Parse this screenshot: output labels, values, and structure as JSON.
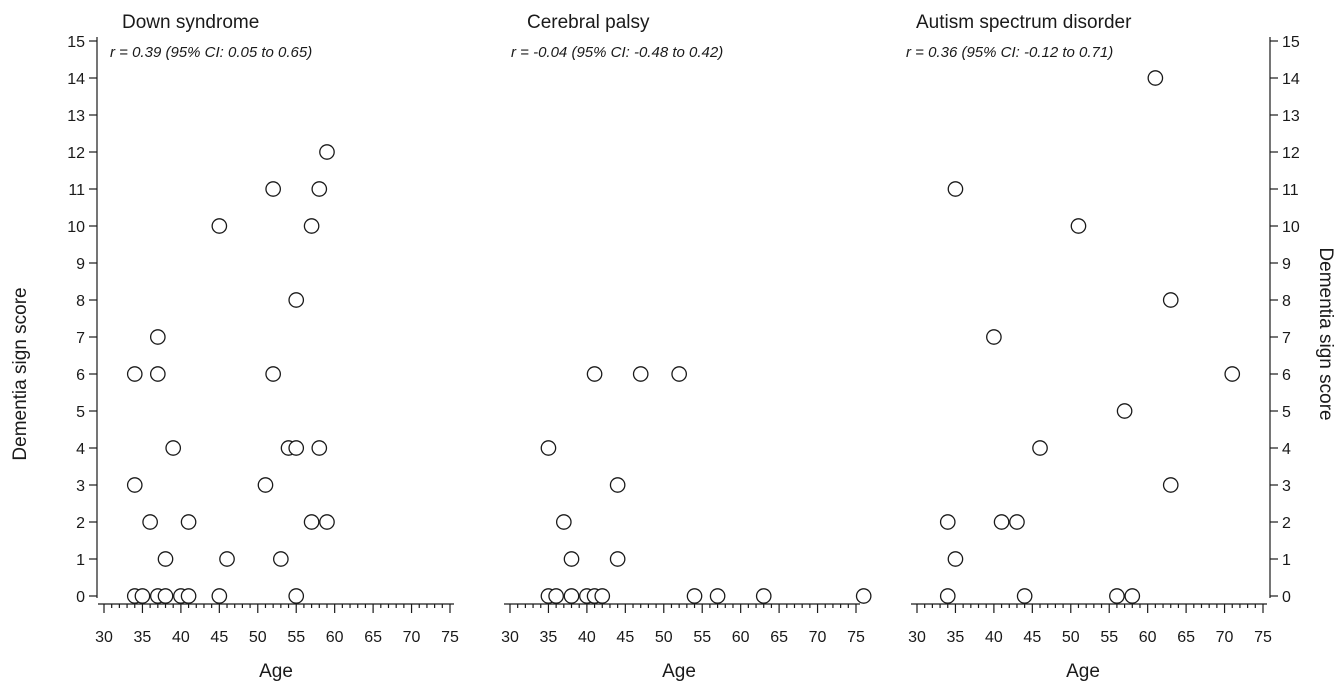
{
  "chart_data": [
    {
      "type": "scatter",
      "title": "Down syndrome",
      "annotation": "r = 0.39 (95% CI: 0.05 to 0.65)",
      "xlabel": "Age",
      "ylabel": "Dementia sign score",
      "xlim": [
        30,
        75
      ],
      "ylim": [
        0,
        15
      ],
      "xticks": [
        30,
        35,
        40,
        45,
        50,
        55,
        60,
        65,
        70,
        75
      ],
      "yticks": [
        0,
        1,
        2,
        3,
        4,
        5,
        6,
        7,
        8,
        9,
        10,
        11,
        12,
        13,
        14,
        15
      ],
      "grid": false,
      "points": [
        {
          "x": 34,
          "y": 0
        },
        {
          "x": 35,
          "y": 0
        },
        {
          "x": 37,
          "y": 0
        },
        {
          "x": 38,
          "y": 0
        },
        {
          "x": 40,
          "y": 0
        },
        {
          "x": 41,
          "y": 0
        },
        {
          "x": 45,
          "y": 0
        },
        {
          "x": 55,
          "y": 0
        },
        {
          "x": 38,
          "y": 1
        },
        {
          "x": 46,
          "y": 1
        },
        {
          "x": 53,
          "y": 1
        },
        {
          "x": 36,
          "y": 2
        },
        {
          "x": 41,
          "y": 2
        },
        {
          "x": 57,
          "y": 2
        },
        {
          "x": 59,
          "y": 2
        },
        {
          "x": 34,
          "y": 3
        },
        {
          "x": 51,
          "y": 3
        },
        {
          "x": 39,
          "y": 4
        },
        {
          "x": 54,
          "y": 4
        },
        {
          "x": 55,
          "y": 4
        },
        {
          "x": 58,
          "y": 4
        },
        {
          "x": 34,
          "y": 6
        },
        {
          "x": 37,
          "y": 6
        },
        {
          "x": 52,
          "y": 6
        },
        {
          "x": 37,
          "y": 7
        },
        {
          "x": 55,
          "y": 8
        },
        {
          "x": 45,
          "y": 10
        },
        {
          "x": 57,
          "y": 10
        },
        {
          "x": 52,
          "y": 11
        },
        {
          "x": 58,
          "y": 11
        },
        {
          "x": 59,
          "y": 12
        }
      ]
    },
    {
      "type": "scatter",
      "title": "Cerebral palsy",
      "annotation": "r = -0.04 (95% CI: -0.48 to 0.42)",
      "xlabel": "Age",
      "ylabel": "",
      "xlim": [
        30,
        75
      ],
      "ylim": [
        0,
        15
      ],
      "xticks": [
        30,
        35,
        40,
        45,
        50,
        55,
        60,
        65,
        70,
        75
      ],
      "yticks": [],
      "grid": false,
      "points": [
        {
          "x": 35,
          "y": 0
        },
        {
          "x": 36,
          "y": 0
        },
        {
          "x": 38,
          "y": 0
        },
        {
          "x": 40,
          "y": 0
        },
        {
          "x": 41,
          "y": 0
        },
        {
          "x": 42,
          "y": 0
        },
        {
          "x": 54,
          "y": 0
        },
        {
          "x": 57,
          "y": 0
        },
        {
          "x": 63,
          "y": 0
        },
        {
          "x": 76,
          "y": 0
        },
        {
          "x": 38,
          "y": 1
        },
        {
          "x": 44,
          "y": 1
        },
        {
          "x": 37,
          "y": 2
        },
        {
          "x": 44,
          "y": 3
        },
        {
          "x": 35,
          "y": 4
        },
        {
          "x": 41,
          "y": 6
        },
        {
          "x": 47,
          "y": 6
        },
        {
          "x": 52,
          "y": 6
        }
      ]
    },
    {
      "type": "scatter",
      "title": "Autism spectrum disorder",
      "annotation": "r = 0.36  (95% CI: -0.12 to 0.71)",
      "xlabel": "Age",
      "ylabel": "Dementia sign score",
      "xlim": [
        30,
        75
      ],
      "ylim": [
        0,
        15
      ],
      "xticks": [
        30,
        35,
        40,
        45,
        50,
        55,
        60,
        65,
        70,
        75
      ],
      "yticks": [
        0,
        1,
        2,
        3,
        4,
        5,
        6,
        7,
        8,
        9,
        10,
        11,
        12,
        13,
        14,
        15
      ],
      "grid": false,
      "points": [
        {
          "x": 34,
          "y": 0
        },
        {
          "x": 44,
          "y": 0
        },
        {
          "x": 56,
          "y": 0
        },
        {
          "x": 58,
          "y": 0
        },
        {
          "x": 35,
          "y": 1
        },
        {
          "x": 34,
          "y": 2
        },
        {
          "x": 41,
          "y": 2
        },
        {
          "x": 43,
          "y": 2
        },
        {
          "x": 63,
          "y": 3
        },
        {
          "x": 46,
          "y": 4
        },
        {
          "x": 57,
          "y": 5
        },
        {
          "x": 71,
          "y": 6
        },
        {
          "x": 40,
          "y": 7
        },
        {
          "x": 63,
          "y": 8
        },
        {
          "x": 51,
          "y": 10
        },
        {
          "x": 35,
          "y": 11
        },
        {
          "x": 61,
          "y": 14
        }
      ]
    }
  ]
}
